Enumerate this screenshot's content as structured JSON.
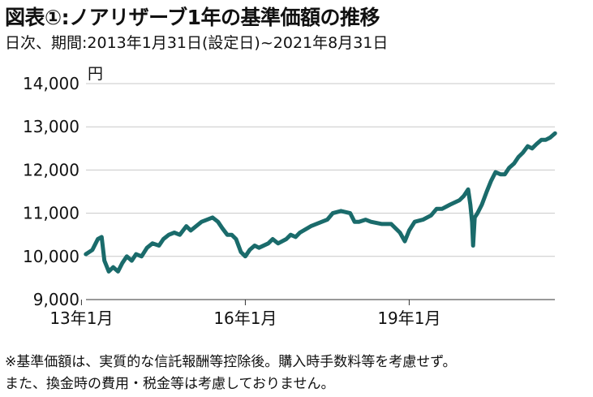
{
  "header": {
    "title": "図表①:ノアリザーブ1年の基準価額の推移",
    "subtitle": "日次、期間:2013年1月31日(設定日)~2021年8月31日"
  },
  "notes": {
    "line1": "※基準価額は、実質的な信託報酬等控除後。購入時手数料等を考慮せず。",
    "line2": "また、換金時の費用・税金等は考慮しておりません。"
  },
  "chart_data": {
    "type": "line",
    "yunit": "円",
    "ylim": [
      9000,
      14000
    ],
    "yticks": [
      9000,
      10000,
      11000,
      12000,
      13000,
      14000
    ],
    "ytick_labels": [
      "9,000",
      "10,000",
      "11,000",
      "12,000",
      "13,000",
      "14,000"
    ],
    "xlim": [
      2013.083,
      2021.667
    ],
    "xticks": [
      2013.0,
      2016.0,
      2019.0
    ],
    "xtick_labels": [
      "13年1月",
      "16年1月",
      "19年1月"
    ],
    "grid": "horizontal",
    "line_color": "#1a6b6b",
    "series": [
      {
        "x": [
          2013.08,
          2013.2,
          2013.3,
          2013.37,
          2013.42,
          2013.5,
          2013.58,
          2013.67,
          2013.75,
          2013.83,
          2013.92,
          2014.0,
          2014.1,
          2014.2,
          2014.3,
          2014.42,
          2014.5,
          2014.6,
          2014.7,
          2014.8,
          2014.92,
          2015.0,
          2015.1,
          2015.2,
          2015.3,
          2015.4,
          2015.5,
          2015.58,
          2015.67,
          2015.75,
          2015.83,
          2015.92,
          2016.0,
          2016.08,
          2016.17,
          2016.25,
          2016.42,
          2016.5,
          2016.6,
          2016.75,
          2016.83,
          2016.92,
          2017.0,
          2017.2,
          2017.4,
          2017.5,
          2017.6,
          2017.75,
          2017.92,
          2018.0,
          2018.08,
          2018.2,
          2018.3,
          2018.5,
          2018.67,
          2018.83,
          2018.92,
          2019.0,
          2019.1,
          2019.25,
          2019.4,
          2019.5,
          2019.6,
          2019.75,
          2019.92,
          2020.0,
          2020.08,
          2020.12,
          2020.15,
          2020.17,
          2020.2,
          2020.25,
          2020.33,
          2020.42,
          2020.5,
          2020.58,
          2020.67,
          2020.75,
          2020.83,
          2020.92,
          2021.0,
          2021.08,
          2021.17,
          2021.25,
          2021.33,
          2021.42,
          2021.5,
          2021.58,
          2021.67
        ],
        "y": [
          10050,
          10150,
          10400,
          10450,
          9900,
          9650,
          9750,
          9650,
          9850,
          10000,
          9900,
          10050,
          10000,
          10200,
          10300,
          10250,
          10400,
          10500,
          10550,
          10500,
          10700,
          10600,
          10700,
          10800,
          10850,
          10900,
          10800,
          10650,
          10500,
          10500,
          10400,
          10100,
          10000,
          10150,
          10250,
          10200,
          10300,
          10400,
          10300,
          10400,
          10500,
          10450,
          10550,
          10700,
          10800,
          10850,
          11000,
          11050,
          11000,
          10800,
          10800,
          10850,
          10800,
          10750,
          10750,
          10550,
          10350,
          10600,
          10800,
          10850,
          10950,
          11100,
          11100,
          11200,
          11300,
          11400,
          11550,
          11200,
          10800,
          10250,
          10900,
          11000,
          11200,
          11500,
          11750,
          11950,
          11900,
          11900,
          12050,
          12150,
          12300,
          12400,
          12550,
          12500,
          12600,
          12700,
          12700,
          12750,
          12850
        ]
      }
    ]
  }
}
